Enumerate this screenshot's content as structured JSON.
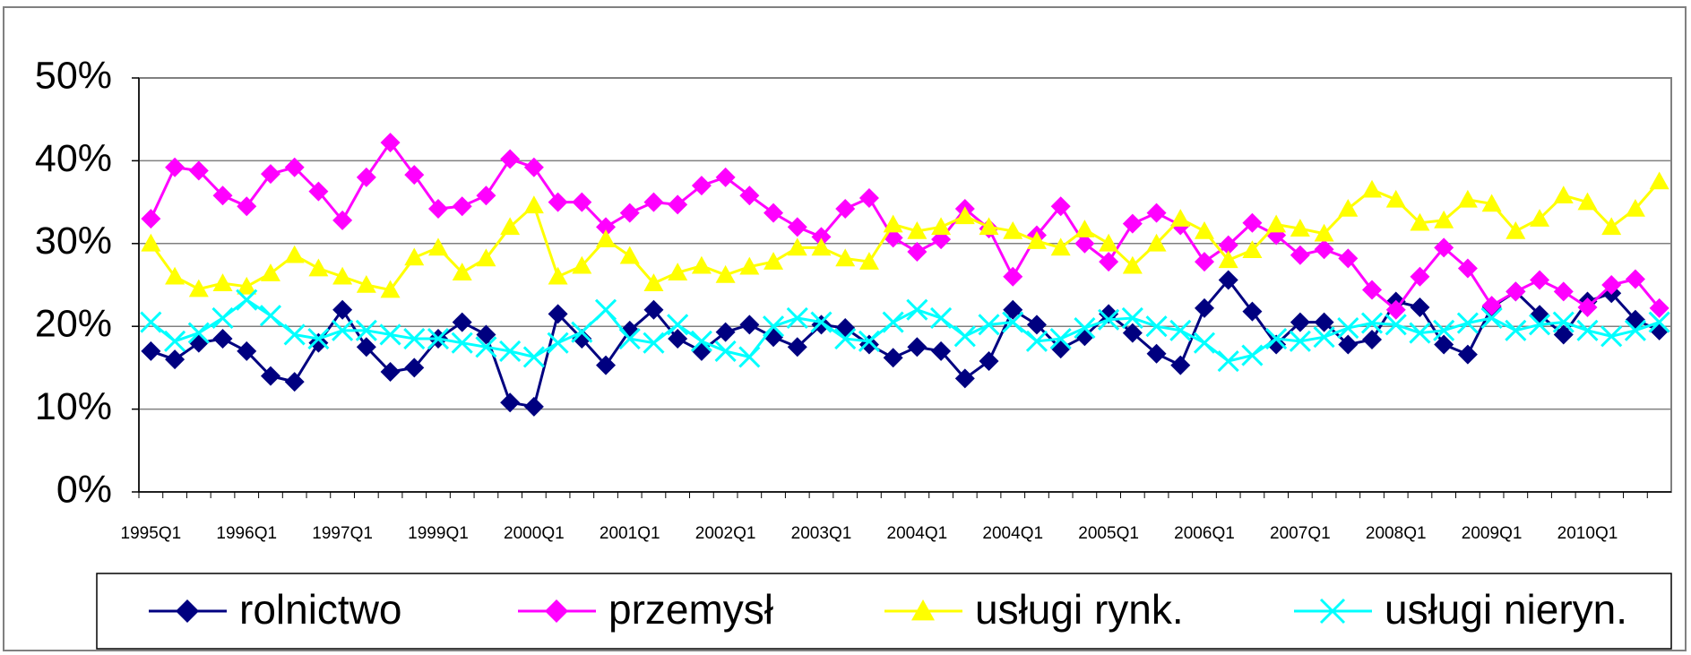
{
  "chart_data": {
    "type": "line",
    "categories": [
      "1995Q1",
      null,
      null,
      null,
      "1996Q1",
      null,
      null,
      null,
      "1997Q1",
      null,
      null,
      null,
      "1999Q1",
      null,
      null,
      null,
      "2000Q1",
      null,
      null,
      null,
      "2001Q1",
      null,
      null,
      null,
      "2002Q1",
      null,
      null,
      null,
      "2003Q1",
      null,
      null,
      null,
      "2004Q1",
      null,
      null,
      null,
      "2004Q1",
      null,
      null,
      null,
      "2005Q1",
      null,
      null,
      null,
      "2006Q1",
      null,
      null,
      null,
      "2007Q1",
      null,
      null,
      null,
      "2008Q1",
      null,
      null,
      null,
      "2009Q1",
      null,
      null,
      null,
      "2010Q1",
      null,
      null,
      null
    ],
    "series": [
      {
        "name": "rolnictwo",
        "color": "#000080",
        "marker": "diamond",
        "values": [
          17,
          16,
          18,
          18.5,
          17,
          14,
          13.3,
          18,
          22,
          17.5,
          14.5,
          15,
          18.5,
          20.5,
          19,
          10.8,
          10.3,
          21.5,
          18.5,
          15.3,
          19.5,
          22,
          18.5,
          17,
          19.3,
          20.2,
          18.7,
          17.5,
          20.2,
          19.8,
          17.8,
          16.2,
          17.5,
          17,
          13.7,
          15.8,
          22,
          20.2,
          17.3,
          18.8,
          21.5,
          19.2,
          16.7,
          15.3,
          22.2,
          25.6,
          21.8,
          17.8,
          20.5,
          20.5,
          17.8,
          18.4,
          23,
          22.3,
          17.8,
          16.6,
          22.3,
          24.2,
          21.4,
          19,
          23,
          24,
          20.8,
          19.5
        ]
      },
      {
        "name": "przemysł",
        "color": "#ff00ff",
        "marker": "diamond",
        "values": [
          33,
          39.2,
          38.8,
          35.8,
          34.5,
          38.4,
          39.2,
          36.3,
          32.8,
          38,
          42.2,
          38.3,
          34.2,
          34.5,
          35.8,
          40.2,
          39.2,
          35,
          35,
          32,
          33.7,
          35,
          34.7,
          37,
          38,
          35.8,
          33.7,
          32,
          30.8,
          34.2,
          35.5,
          30.7,
          29,
          30.5,
          34.2,
          31.8,
          26,
          31,
          34.5,
          30,
          27.8,
          32.4,
          33.7,
          32.2,
          27.8,
          29.8,
          32.5,
          31,
          28.6,
          29.3,
          28.2,
          24.4,
          22,
          26,
          29.5,
          27,
          22.5,
          24.2,
          25.6,
          24.2,
          22.3,
          25,
          25.7,
          22.2
        ]
      },
      {
        "name": "usługi rynk.",
        "color": "#ffff00",
        "marker": "triangle",
        "values": [
          30,
          26,
          24.5,
          25.2,
          24.8,
          26.4,
          28.6,
          27,
          26,
          25,
          24.4,
          28.3,
          29.5,
          26.5,
          28.2,
          32,
          34.6,
          26,
          27.3,
          30.5,
          28.5,
          25.2,
          26.5,
          27.3,
          26.2,
          27.2,
          27.8,
          29.5,
          29.5,
          28.2,
          27.8,
          32.3,
          31.5,
          32,
          33.3,
          32,
          31.5,
          30.3,
          29.5,
          31.7,
          30,
          27.3,
          30,
          33,
          31.5,
          28,
          29.2,
          32.3,
          31.8,
          31.2,
          34.2,
          36.5,
          35.3,
          32.5,
          32.8,
          35.3,
          34.8,
          31.5,
          33,
          35.8,
          35,
          32,
          34.2,
          37.5
        ]
      },
      {
        "name": "usługi nieryn.",
        "color": "#00ffff",
        "marker": "x",
        "values": [
          20.5,
          18.2,
          19.2,
          21,
          23.2,
          21.3,
          19,
          18.5,
          19.5,
          19.5,
          19,
          18.5,
          18.5,
          18,
          17.5,
          17,
          16.3,
          18,
          19.3,
          22,
          18.5,
          18,
          20.2,
          18.2,
          17,
          16.3,
          20,
          21,
          20.5,
          18.5,
          18.2,
          20.5,
          22,
          21,
          18.8,
          20.2,
          20.5,
          18.2,
          18.5,
          19.8,
          20.8,
          21,
          20,
          19.5,
          18,
          15.8,
          16.5,
          18.5,
          18.2,
          18.7,
          19.8,
          20.4,
          20.2,
          19.2,
          19.5,
          20.4,
          21,
          19.5,
          20.2,
          20.5,
          19.5,
          18.8,
          19.5,
          20.5
        ]
      }
    ],
    "ylim": [
      0,
      50
    ],
    "yticks": [
      {
        "value": 0,
        "label": "0%"
      },
      {
        "value": 10,
        "label": "10%"
      },
      {
        "value": 20,
        "label": "20%"
      },
      {
        "value": 30,
        "label": "30%"
      },
      {
        "value": 40,
        "label": "40%"
      },
      {
        "value": 50,
        "label": "50%"
      }
    ],
    "grid": true,
    "legend": "bottom"
  }
}
